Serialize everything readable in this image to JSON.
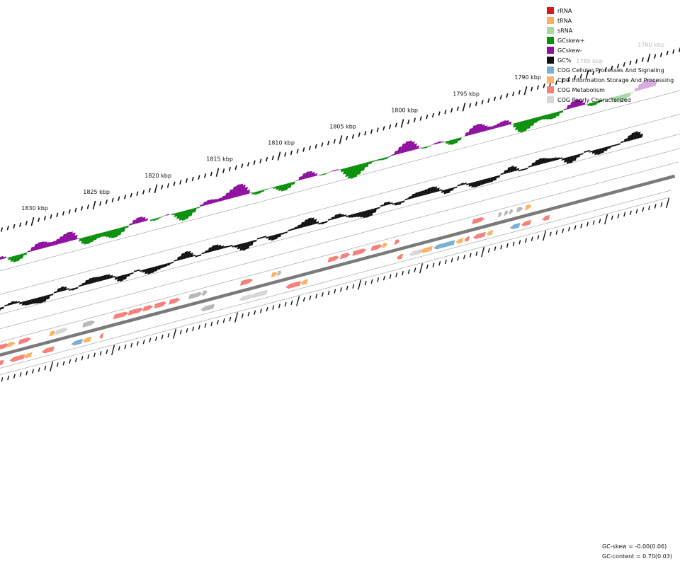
{
  "legend": [
    {
      "label": "rRNA",
      "color": "#d7191c"
    },
    {
      "label": "tRNA",
      "color": "#fdae61"
    },
    {
      "label": "sRNA",
      "color": "#a6dba0"
    },
    {
      "label": "GCskew+",
      "color": "#0a8f0a"
    },
    {
      "label": "GCskew-",
      "color": "#8e0e9e"
    },
    {
      "label": "GC%",
      "color": "#111111"
    },
    {
      "label": "COG Cellular Processes And Signaling",
      "color": "#7bafd4"
    },
    {
      "label": "COG Information Storage And Processing",
      "color": "#fdb367"
    },
    {
      "label": "COG Metabolism",
      "color": "#f4817a"
    },
    {
      "label": "COG Poorly Characterized",
      "color": "#d7d7d7"
    }
  ],
  "ruler_labels": [
    "1830 kbp",
    "1825 kbp",
    "1820 kbp",
    "1815 kbp",
    "1810 kbp",
    "1805 kbp",
    "1800 kbp",
    "1795 kbp",
    "1790 kbp",
    "1785 kbp",
    "1780 kbp"
  ],
  "stats": {
    "gc_skew": "GC-skew = -0.00(0.06)",
    "gc_content": "GC-content = 0.70(0.03)"
  },
  "colors": {
    "skew_pos": "#0a8f0a",
    "skew_neg": "#8e0e9e",
    "gc": "#111111",
    "backbone": "#7a7a7a",
    "track_line": "#9a9a9a",
    "cog_info": "#fdb367",
    "cog_metab": "#f4817a",
    "cog_cell": "#7bafd4",
    "cog_poor": "#d7d7d7",
    "cog_grey": "#b8b8b8"
  },
  "genes": [
    {
      "kbp": 1831.2,
      "strand": "+",
      "cat": "metabolism",
      "len": 0.6
    },
    {
      "kbp": 1830.6,
      "strand": "+",
      "cat": "metabolism",
      "len": 1.4
    },
    {
      "kbp": 1829.3,
      "strand": "+",
      "cat": "info",
      "len": 0.6
    },
    {
      "kbp": 1828.4,
      "strand": "+",
      "cat": "metabolism",
      "len": 1.0
    },
    {
      "kbp": 1825.9,
      "strand": "+",
      "cat": "info",
      "len": 0.5
    },
    {
      "kbp": 1825.4,
      "strand": "+",
      "cat": "poor",
      "len": 1.0
    },
    {
      "kbp": 1823.2,
      "strand": "+",
      "cat": "grey",
      "len": 1.0
    },
    {
      "kbp": 1820.7,
      "strand": "+",
      "cat": "metabolism",
      "len": 1.2
    },
    {
      "kbp": 1819.5,
      "strand": "+",
      "cat": "metabolism",
      "len": 1.2
    },
    {
      "kbp": 1818.3,
      "strand": "+",
      "cat": "metabolism",
      "len": 0.8
    },
    {
      "kbp": 1817.4,
      "strand": "+",
      "cat": "metabolism",
      "len": 1.0
    },
    {
      "kbp": 1816.2,
      "strand": "+",
      "cat": "metabolism",
      "len": 0.9
    },
    {
      "kbp": 1814.6,
      "strand": "+",
      "cat": "grey",
      "len": 1.1
    },
    {
      "kbp": 1813.5,
      "strand": "+",
      "cat": "grey",
      "len": 0.4
    },
    {
      "kbp": 1810.4,
      "strand": "+",
      "cat": "metabolism",
      "len": 1.0
    },
    {
      "kbp": 1807.9,
      "strand": "+",
      "cat": "info",
      "len": 0.5
    },
    {
      "kbp": 1807.4,
      "strand": "+",
      "cat": "grey",
      "len": 0.3
    },
    {
      "kbp": 1803.3,
      "strand": "+",
      "cat": "metabolism",
      "len": 0.9
    },
    {
      "kbp": 1802.3,
      "strand": "+",
      "cat": "metabolism",
      "len": 0.8
    },
    {
      "kbp": 1801.3,
      "strand": "+",
      "cat": "metabolism",
      "len": 1.1
    },
    {
      "kbp": 1799.8,
      "strand": "+",
      "cat": "metabolism",
      "len": 0.9
    },
    {
      "kbp": 1798.9,
      "strand": "+",
      "cat": "info",
      "len": 0.4
    },
    {
      "kbp": 1797.9,
      "strand": "+",
      "cat": "metabolism",
      "len": 0.4
    },
    {
      "kbp": 1791.6,
      "strand": "+",
      "cat": "metabolism",
      "len": 1.0
    },
    {
      "kbp": 1789.5,
      "strand": "+",
      "cat": "grey",
      "len": 0.3
    },
    {
      "kbp": 1789.0,
      "strand": "+",
      "cat": "grey",
      "len": 0.3
    },
    {
      "kbp": 1788.6,
      "strand": "+",
      "cat": "grey",
      "len": 0.3
    },
    {
      "kbp": 1788.0,
      "strand": "+",
      "cat": "grey",
      "len": 0.5
    },
    {
      "kbp": 1787.3,
      "strand": "+",
      "cat": "info",
      "len": 0.5
    },
    {
      "kbp": 1831.5,
      "strand": "-",
      "cat": "poor",
      "len": 0.5
    },
    {
      "kbp": 1829.9,
      "strand": "-",
      "cat": "metabolism",
      "len": 0.6
    },
    {
      "kbp": 1828.8,
      "strand": "-",
      "cat": "metabolism",
      "len": 1.2
    },
    {
      "kbp": 1827.7,
      "strand": "-",
      "cat": "info",
      "len": 0.7
    },
    {
      "kbp": 1826.2,
      "strand": "-",
      "cat": "metabolism",
      "len": 1.0
    },
    {
      "kbp": 1823.8,
      "strand": "-",
      "cat": "cell",
      "len": 0.9
    },
    {
      "kbp": 1822.9,
      "strand": "-",
      "cat": "info",
      "len": 0.7
    },
    {
      "kbp": 1821.5,
      "strand": "-",
      "cat": "metabolism",
      "len": 0.3
    },
    {
      "kbp": 1813.3,
      "strand": "-",
      "cat": "grey",
      "len": 1.1
    },
    {
      "kbp": 1810.2,
      "strand": "-",
      "cat": "poor",
      "len": 1.0
    },
    {
      "kbp": 1809.3,
      "strand": "-",
      "cat": "poor",
      "len": 1.4
    },
    {
      "kbp": 1806.4,
      "strand": "-",
      "cat": "metabolism",
      "len": 1.2
    },
    {
      "kbp": 1805.2,
      "strand": "-",
      "cat": "info",
      "len": 0.6
    },
    {
      "kbp": 1797.4,
      "strand": "-",
      "cat": "metabolism",
      "len": 0.5
    },
    {
      "kbp": 1796.4,
      "strand": "-",
      "cat": "poor",
      "len": 1.0
    },
    {
      "kbp": 1795.5,
      "strand": "-",
      "cat": "info",
      "len": 1.0
    },
    {
      "kbp": 1794.4,
      "strand": "-",
      "cat": "cell",
      "len": 1.7
    },
    {
      "kbp": 1792.6,
      "strand": "-",
      "cat": "info",
      "len": 0.6
    },
    {
      "kbp": 1791.9,
      "strand": "-",
      "cat": "metabolism",
      "len": 0.4
    },
    {
      "kbp": 1791.2,
      "strand": "-",
      "cat": "metabolism",
      "len": 1.0
    },
    {
      "kbp": 1790.1,
      "strand": "-",
      "cat": "info",
      "len": 0.5
    },
    {
      "kbp": 1788.2,
      "strand": "-",
      "cat": "cell",
      "len": 0.8
    },
    {
      "kbp": 1787.3,
      "strand": "-",
      "cat": "metabolism",
      "len": 0.8
    },
    {
      "kbp": 1785.6,
      "strand": "-",
      "cat": "metabolism",
      "len": 0.6
    }
  ]
}
